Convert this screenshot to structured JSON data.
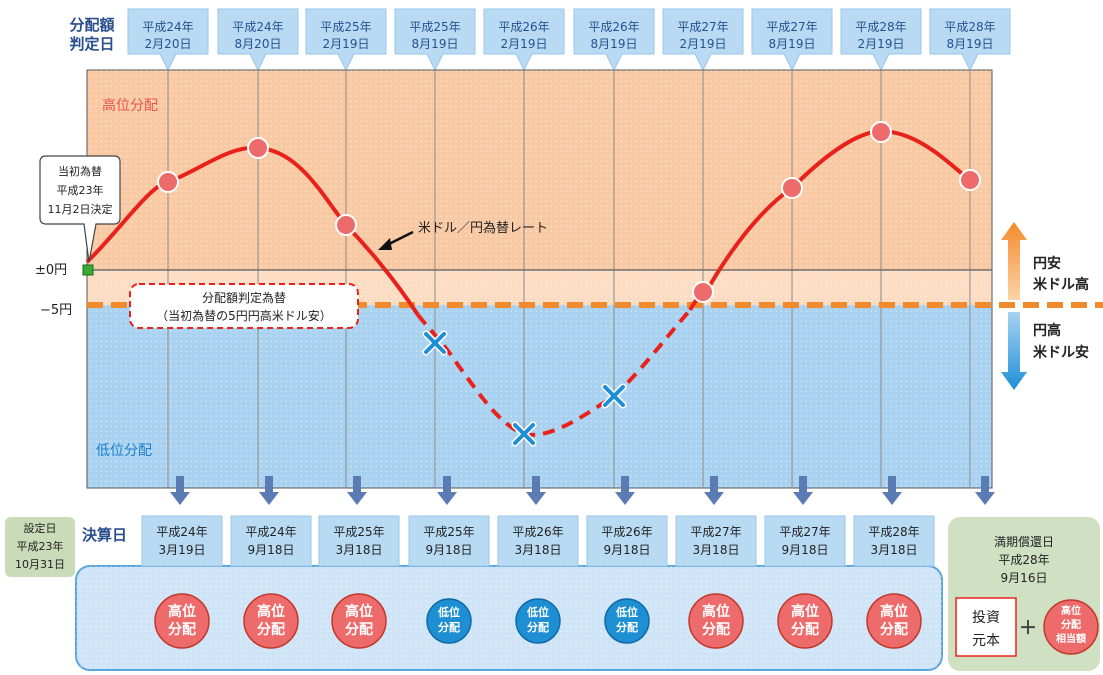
{
  "header": {
    "judgment_label": [
      "分配額",
      "判定日"
    ],
    "judgment_dates": [
      [
        "平成24年",
        "2月20日"
      ],
      [
        "平成24年",
        "8月20日"
      ],
      [
        "平成25年",
        "2月19日"
      ],
      [
        "平成25年",
        "8月19日"
      ],
      [
        "平成26年",
        "2月19日"
      ],
      [
        "平成26年",
        "8月19日"
      ],
      [
        "平成27年",
        "2月19日"
      ],
      [
        "平成27年",
        "8月19日"
      ],
      [
        "平成28年",
        "2月19日"
      ],
      [
        "平成28年",
        "8月19日"
      ]
    ]
  },
  "zones": {
    "high_label": "高位分配",
    "low_label": "低位分配"
  },
  "axis": {
    "zero_label": "±0円",
    "minus5_label": "−5円"
  },
  "callouts": {
    "initial_rate": [
      "当初為替",
      "平成23年",
      "11月2日決定"
    ],
    "judgment_rate": [
      "分配額判定為替",
      "（当初為替の5円円高米ドル安）"
    ],
    "curve_label": "米ドル／円為替レート"
  },
  "side_legend": {
    "up": [
      "円安",
      "米ドル高"
    ],
    "down": [
      "円高",
      "米ドル安"
    ]
  },
  "settlement": {
    "setup": [
      "設定日",
      "平成23年",
      "10月31日"
    ],
    "label": "決算日",
    "dates": [
      [
        "平成24年",
        "3月19日"
      ],
      [
        "平成24年",
        "9月18日"
      ],
      [
        "平成25年",
        "3月18日"
      ],
      [
        "平成25年",
        "9月18日"
      ],
      [
        "平成26年",
        "3月18日"
      ],
      [
        "平成26年",
        "9月18日"
      ],
      [
        "平成27年",
        "3月18日"
      ],
      [
        "平成27年",
        "9月18日"
      ],
      [
        "平成28年",
        "3月18日"
      ]
    ],
    "results": [
      [
        "高位",
        "分配"
      ],
      [
        "高位",
        "分配"
      ],
      [
        "高位",
        "分配"
      ],
      [
        "低位",
        "分配"
      ],
      [
        "低位",
        "分配"
      ],
      [
        "低位",
        "分配"
      ],
      [
        "高位",
        "分配"
      ],
      [
        "高位",
        "分配"
      ],
      [
        "高位",
        "分配"
      ]
    ],
    "result_levels": [
      "high",
      "high",
      "high",
      "low",
      "low",
      "low",
      "high",
      "high",
      "high"
    ],
    "maturity": {
      "title": [
        "満期償還日",
        "平成28年",
        "9月16日"
      ],
      "principal": [
        "投資",
        "元本"
      ],
      "plus": "＋",
      "high_equiv": [
        "高位",
        "分配",
        "相当額"
      ]
    }
  },
  "colors": {
    "high_zone": "#f9c9a4",
    "low_zone": "#a9d2f1",
    "curve": "#e8221b",
    "marker_high": "#ee6b6b",
    "marker_low": "#1f8fd3",
    "threshold": "#f08a2c",
    "header_box": "#b8daf3",
    "header_text": "#2a4f8f",
    "arrow": "#5b7bb5",
    "maturity_box": "#cfe0c3",
    "setup_box": "#c9dbb8"
  }
}
